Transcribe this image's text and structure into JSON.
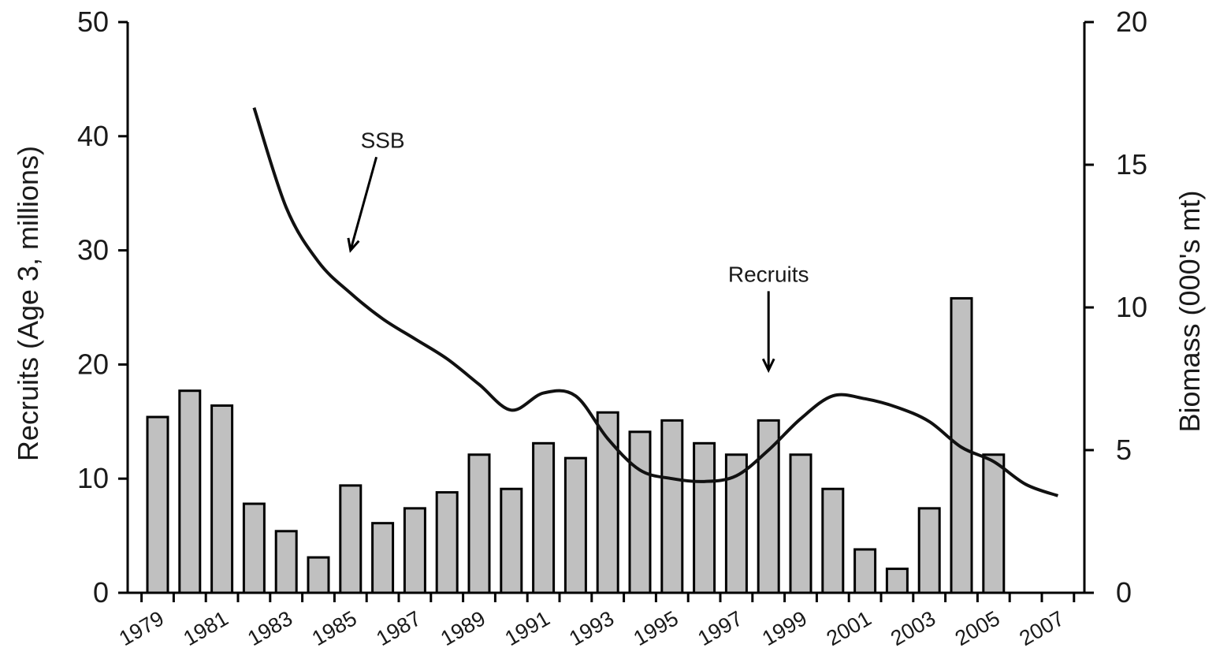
{
  "chart_data": {
    "type": "bar",
    "title": "",
    "x": [
      1979,
      1980,
      1981,
      1982,
      1983,
      1984,
      1985,
      1986,
      1987,
      1988,
      1989,
      1990,
      1991,
      1992,
      1993,
      1994,
      1995,
      1996,
      1997,
      1998,
      1999,
      2000,
      2001,
      2002,
      2003,
      2004,
      2005,
      2006,
      2007
    ],
    "x_tick_labels": [
      "1979",
      "1981",
      "1983",
      "1985",
      "1987",
      "1989",
      "1991",
      "1993",
      "1995",
      "1997",
      "1999",
      "2001",
      "2003",
      "2005",
      "2007"
    ],
    "ylabel": "Recruits (Age 3, millions)",
    "ylabel_right": "Biomass (000's mt)",
    "ylim": [
      0,
      50
    ],
    "ylim_right": [
      0,
      20
    ],
    "yticks": [
      "0",
      "10",
      "20",
      "30",
      "40",
      "50"
    ],
    "yticks_right": [
      "0",
      "5",
      "10",
      "15",
      "20"
    ],
    "grid": false,
    "series": [
      {
        "type": "bar",
        "axis": "left",
        "color": "#c0c0c0",
        "values": [
          15.4,
          17.7,
          16.4,
          7.8,
          5.4,
          3.1,
          9.4,
          6.1,
          7.4,
          8.8,
          12.1,
          9.1,
          13.1,
          11.8,
          15.8,
          14.1,
          15.1,
          13.1,
          12.1,
          15.1,
          12.1,
          9.1,
          3.8,
          2.1,
          7.4,
          25.8,
          12.1,
          null,
          null
        ]
      },
      {
        "type": "line",
        "axis": "right",
        "color": "#111111",
        "x": [
          1982,
          1983,
          1984,
          1985,
          1986,
          1987,
          1988,
          1989,
          1990,
          1991,
          1992,
          1993,
          1994,
          1995,
          1996,
          1997,
          1998,
          1999,
          2000,
          2001,
          2002,
          2003,
          2004,
          2005,
          2006,
          2007
        ],
        "values": [
          17.0,
          13.5,
          11.6,
          10.5,
          9.6,
          8.9,
          8.2,
          7.3,
          6.4,
          7.0,
          6.9,
          5.4,
          4.3,
          4.0,
          3.9,
          4.1,
          5.0,
          6.1,
          6.9,
          6.8,
          6.5,
          6.0,
          5.1,
          4.6,
          3.8,
          3.4
        ]
      }
    ],
    "annotations": [
      {
        "text": "SSB",
        "x": 1986,
        "y_right": 15.6,
        "arrow_to_year": 1985,
        "arrow_to_right": 12.0
      },
      {
        "text": "Recruits",
        "x": 1998,
        "y_right": 10.9,
        "arrow_to_year": 1998,
        "arrow_to_right": 7.8
      }
    ]
  }
}
